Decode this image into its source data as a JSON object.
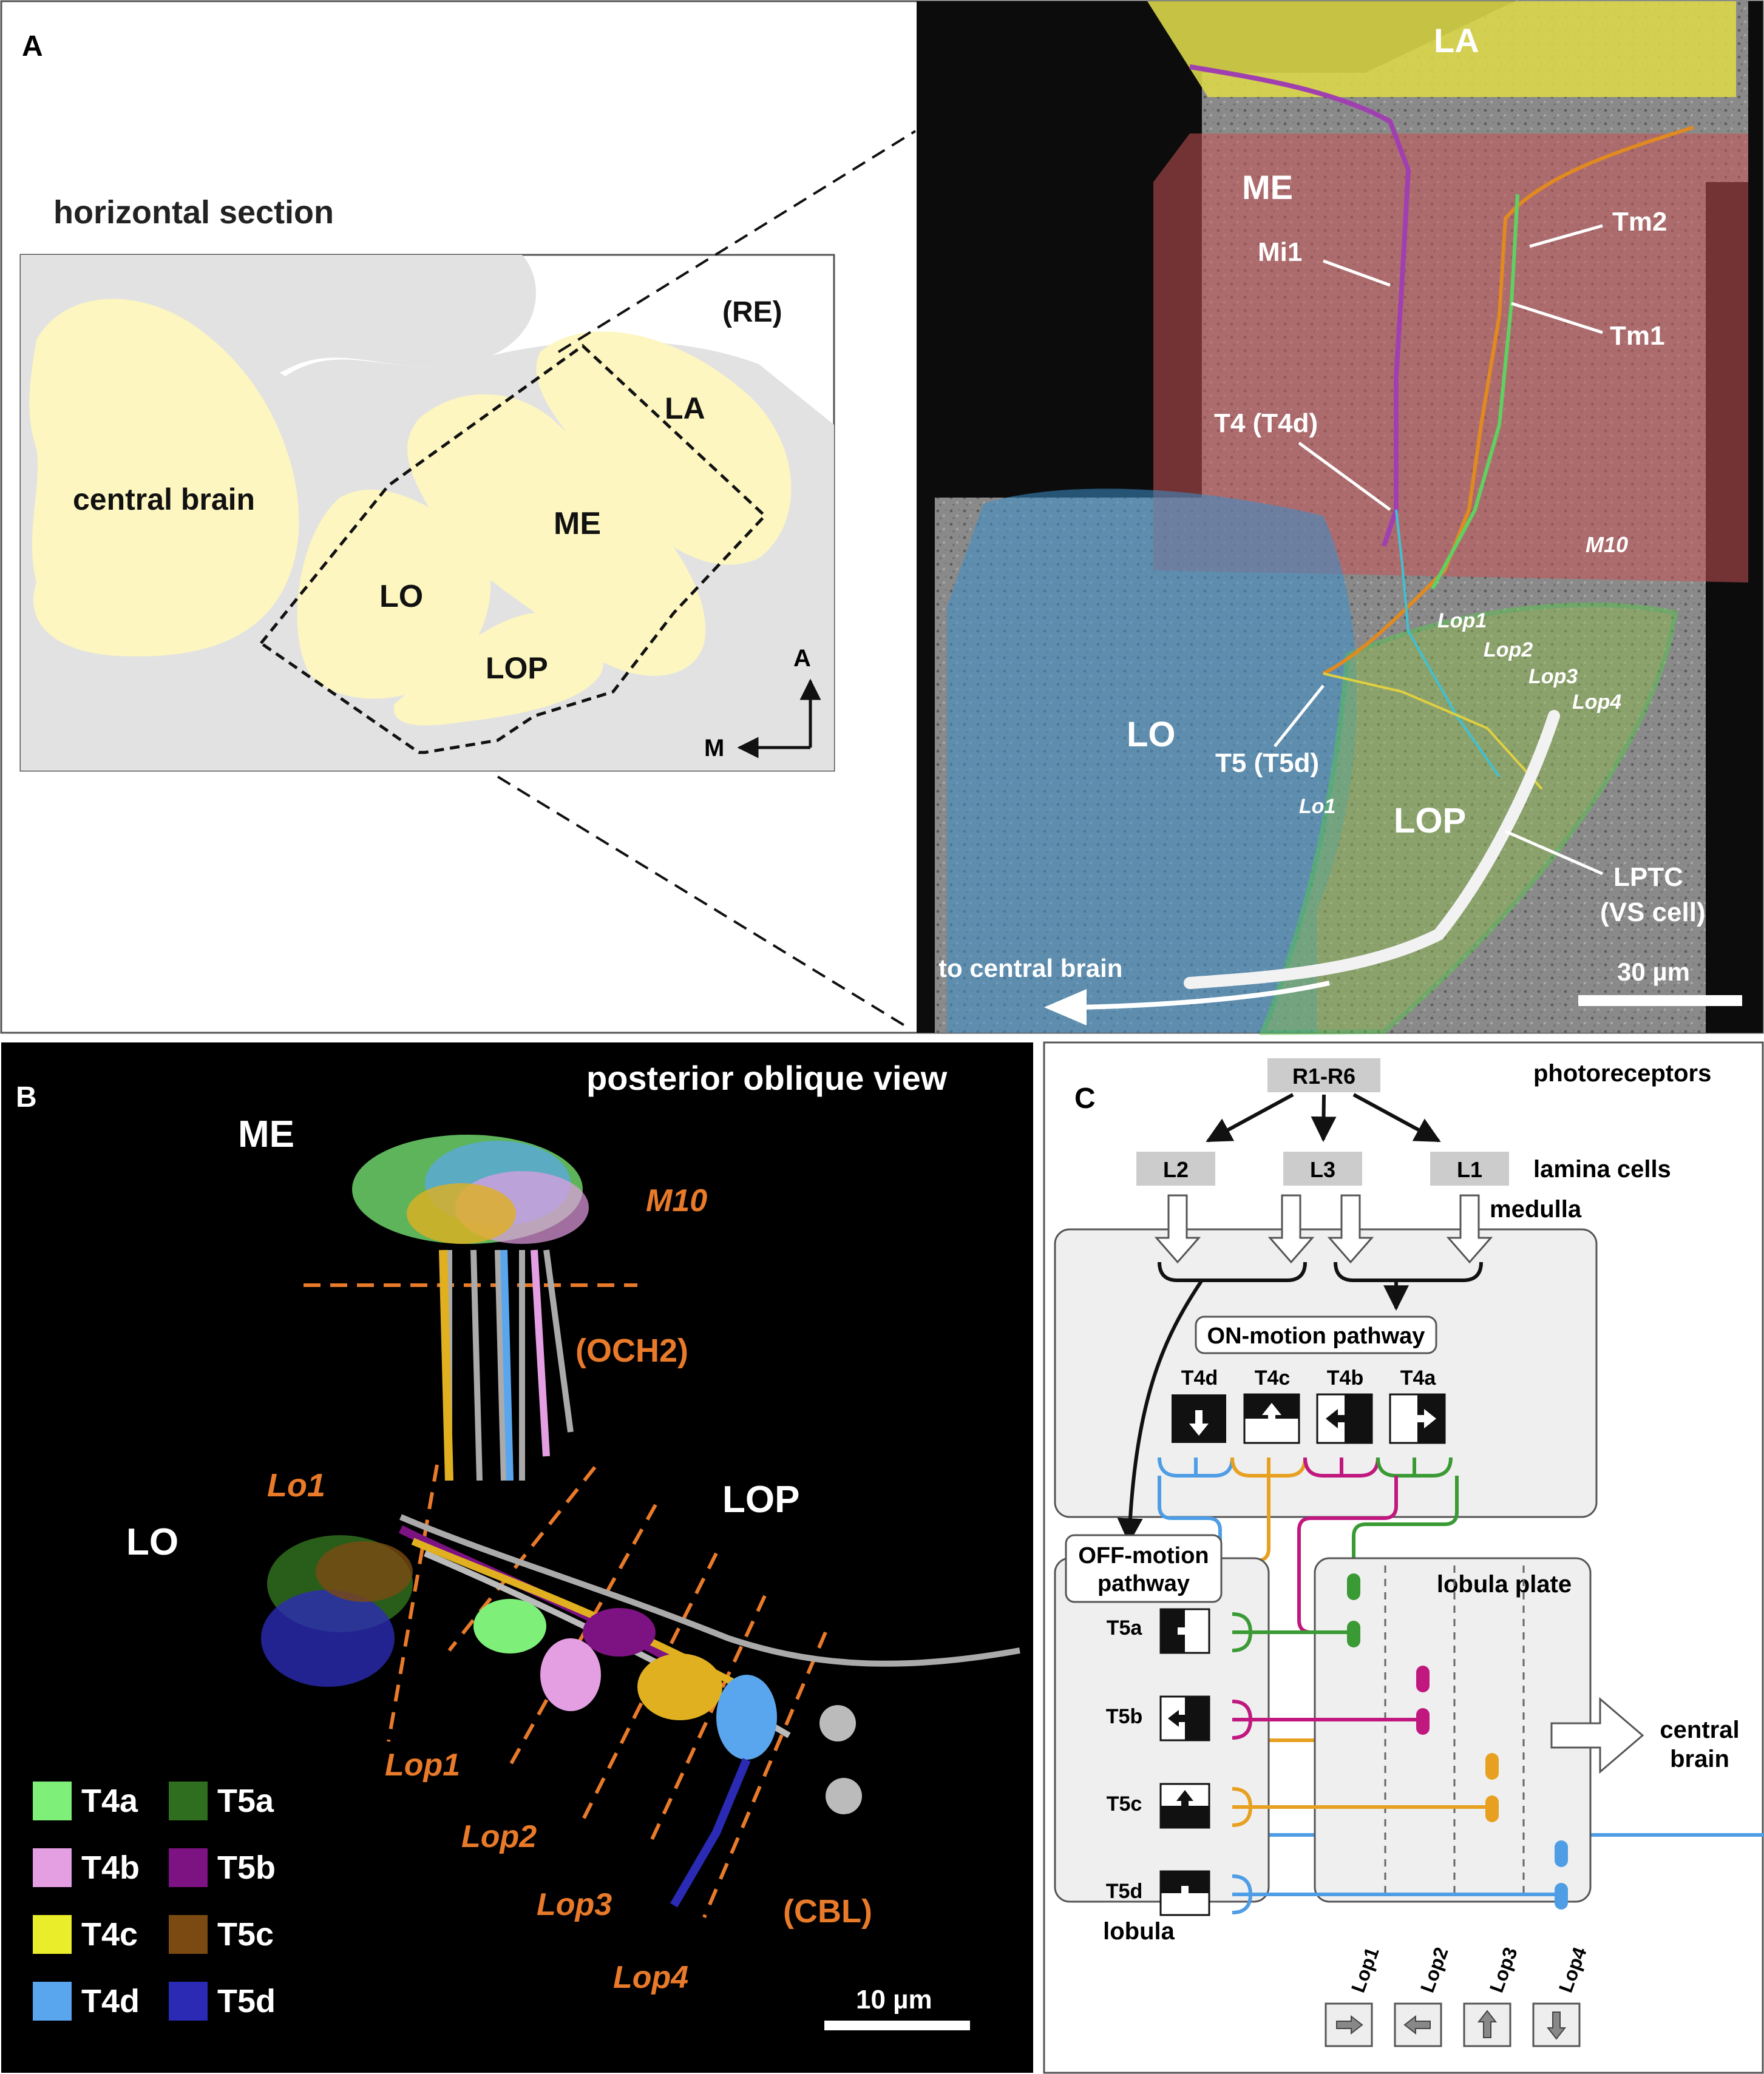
{
  "panelA": {
    "letter": "A",
    "title": "horizontal section",
    "regions": {
      "re": "(RE)",
      "central": "central brain",
      "la": "LA",
      "me": "ME",
      "lo": "LO",
      "lop": "LOP"
    },
    "compass": {
      "a": "A",
      "m": "M"
    },
    "em": {
      "la": "LA",
      "me": "ME",
      "lo": "LO",
      "lop": "LOP",
      "mi1": "Mi1",
      "tm2": "Tm2",
      "tm1": "Tm1",
      "t4": "T4 (T4d)",
      "t5": "T5 (T5d)",
      "m10": "M10",
      "lop1": "Lop1",
      "lop2": "Lop2",
      "lop3": "Lop3",
      "lop4": "Lop4",
      "lo1": "Lo1",
      "lptc1": "LPTC",
      "lptc2": "(VS cell)",
      "arrow": "to central brain",
      "scale": "30 µm"
    }
  },
  "panelB": {
    "letter": "B",
    "title": "posterior oblique view",
    "me": "ME",
    "m10": "M10",
    "och2": "(OCH2)",
    "lo1": "Lo1",
    "lo": "LO",
    "lop": "LOP",
    "lop1": "Lop1",
    "lop2": "Lop2",
    "lop3": "Lop3",
    "lop4": "Lop4",
    "cbl": "(CBL)",
    "scale": "10 µm",
    "legend": [
      {
        "label": "T4a",
        "color": "#7ef07a"
      },
      {
        "label": "T5a",
        "color": "#2f6e1f"
      },
      {
        "label": "T4b",
        "color": "#e49ee2"
      },
      {
        "label": "T5b",
        "color": "#7d1283"
      },
      {
        "label": "T4c",
        "color": "#eaee2a"
      },
      {
        "label": "T5c",
        "color": "#7a4a12"
      },
      {
        "label": "T4d",
        "color": "#5aa6ee"
      },
      {
        "label": "T5d",
        "color": "#2a2ab4"
      }
    ]
  },
  "panelC": {
    "letter": "C",
    "r": "R1-R6",
    "photo": "photoreceptors",
    "l1": "L1",
    "l2": "L2",
    "l3": "L3",
    "lamina": "lamina cells",
    "medulla": "medulla",
    "on": "ON-motion pathway",
    "off1": "OFF-motion",
    "off2": "pathway",
    "t4": [
      "T4d",
      "T4c",
      "T4b",
      "T4a"
    ],
    "t5": [
      "T5a",
      "T5b",
      "T5c",
      "T5d"
    ],
    "lobula": "lobula",
    "plate": "lobula plate",
    "central1": "central",
    "central2": "brain",
    "layers": [
      "Lop1",
      "Lop2",
      "Lop3",
      "Lop4"
    ],
    "colors": {
      "a": "#3a9a34",
      "b": "#c0187f",
      "c": "#e8a020",
      "d": "#4f9de4"
    }
  }
}
